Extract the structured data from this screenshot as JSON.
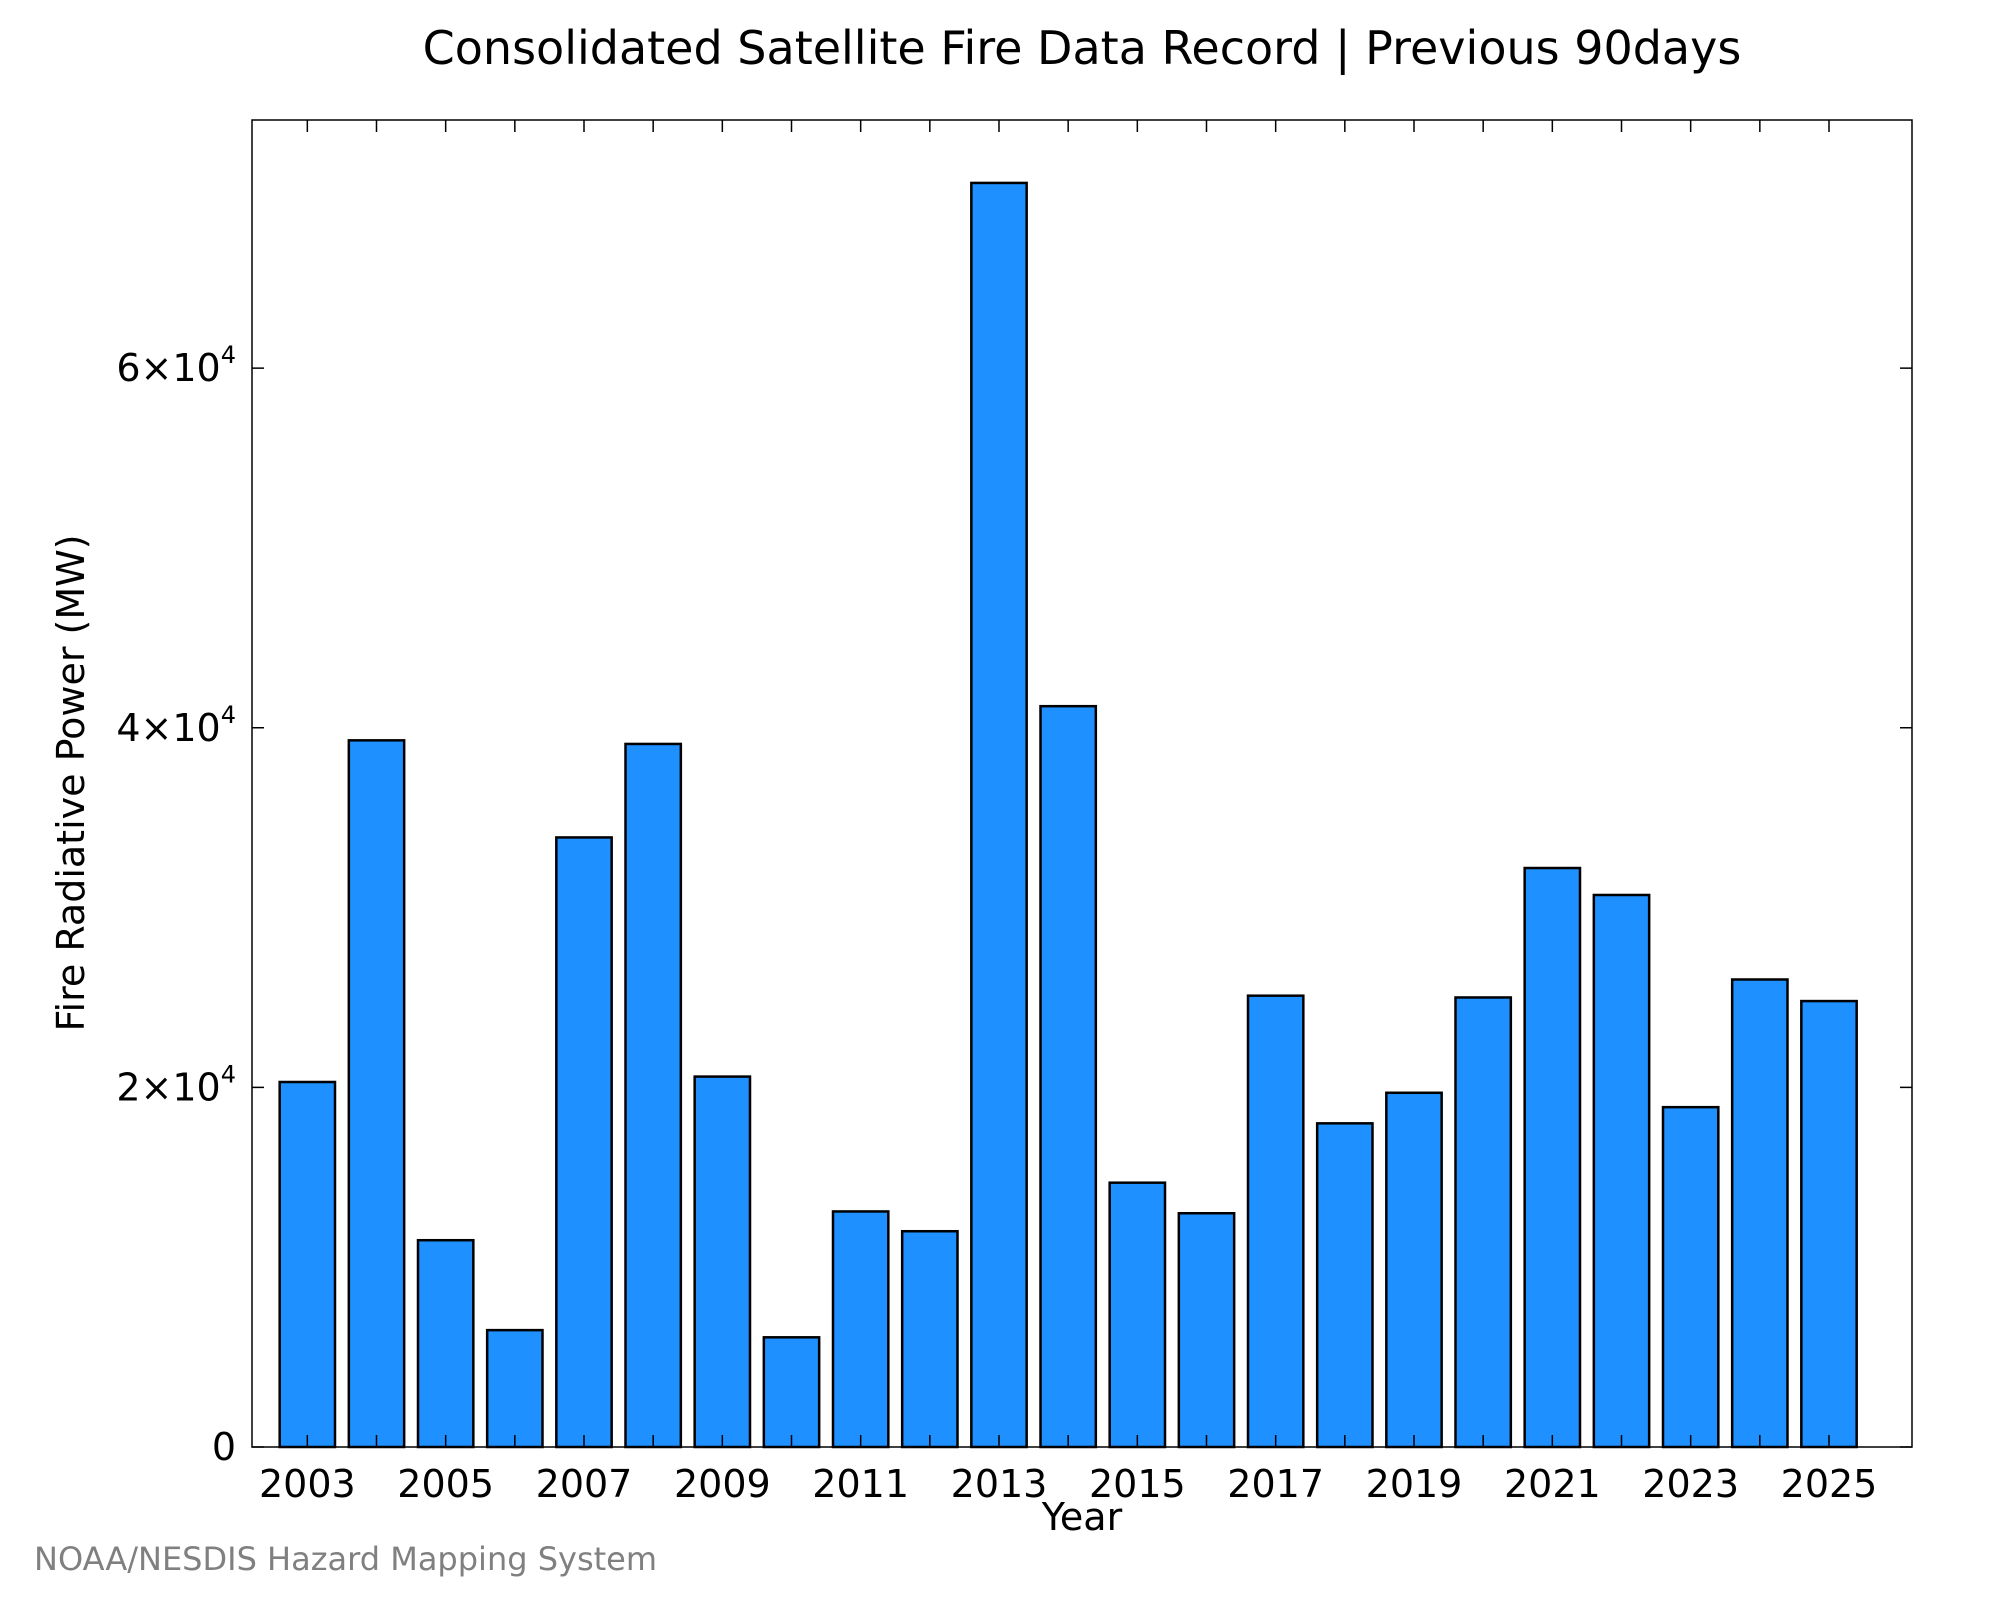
{
  "chart_data": {
    "type": "bar",
    "title": "Consolidated Satellite Fire Data Record | Previous 90days",
    "xlabel": "Year",
    "ylabel": "Fire Radiative Power (MW)",
    "credit": "NOAA/NESDIS Hazard Mapping System",
    "bar_color": "#1E90FF",
    "bar_edge_color": "#000000",
    "categories": [
      2003,
      2004,
      2005,
      2006,
      2007,
      2008,
      2009,
      2010,
      2011,
      2012,
      2013,
      2014,
      2015,
      2016,
      2017,
      2018,
      2019,
      2020,
      2021,
      2022,
      2023,
      2024,
      2025
    ],
    "values": [
      20300,
      39300,
      11500,
      6500,
      33900,
      39100,
      20600,
      6100,
      13100,
      12000,
      70300,
      41200,
      14700,
      13000,
      25100,
      18000,
      19700,
      25000,
      32200,
      30700,
      18900,
      26000,
      24800
    ],
    "x_tick_labels": [
      "2003",
      "2005",
      "2007",
      "2009",
      "2011",
      "2013",
      "2015",
      "2017",
      "2019",
      "2021",
      "2023",
      "2025"
    ],
    "x_tick_minor": [
      2004,
      2006,
      2008,
      2010,
      2012,
      2014,
      2016,
      2018,
      2020,
      2022,
      2024
    ],
    "y_ticks": [
      {
        "value": 0,
        "mantissa": "0",
        "exponent": ""
      },
      {
        "value": 20000,
        "mantissa": "2×10",
        "exponent": "4"
      },
      {
        "value": 40000,
        "mantissa": "4×10",
        "exponent": "4"
      },
      {
        "value": 60000,
        "mantissa": "6×10",
        "exponent": "4"
      }
    ],
    "xlim": [
      2002.2,
      2026.2
    ],
    "ylim": [
      0,
      73800
    ],
    "grid": false,
    "legend": "none"
  }
}
